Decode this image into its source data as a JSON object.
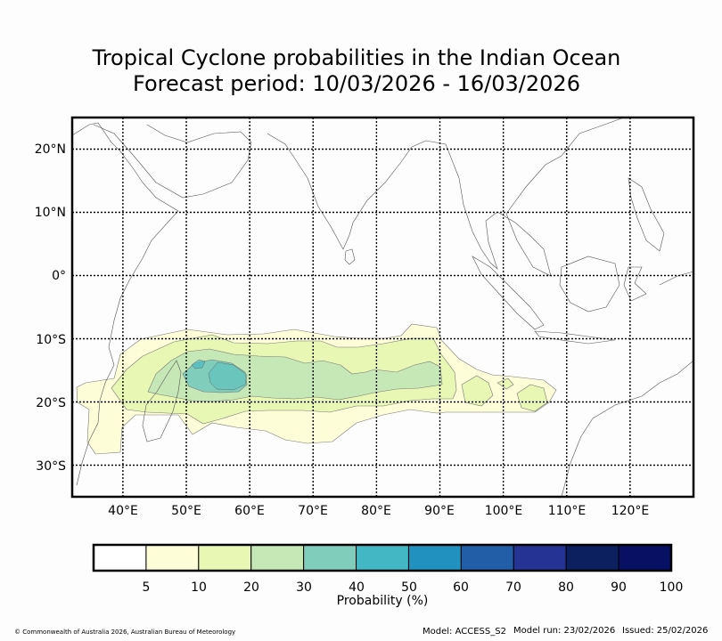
{
  "title_line1": "Tropical Cyclone probabilities in the Indian Ocean",
  "title_line2": "Forecast period: 10/03/2026 - 16/03/2026",
  "map": {
    "lat_labels": [
      "20°N",
      "10°N",
      "0°",
      "10°S",
      "20°S",
      "30°S"
    ],
    "lon_labels": [
      "40°E",
      "50°E",
      "60°E",
      "70°E",
      "80°E",
      "90°E",
      "100°E",
      "110°E",
      "120°E"
    ],
    "lat_range": [
      -35,
      25
    ],
    "lon_range": [
      32,
      130
    ]
  },
  "legend": {
    "label": "Probability (%)",
    "ticks": [
      "5",
      "10",
      "20",
      "30",
      "40",
      "50",
      "60",
      "70",
      "80",
      "90",
      "100"
    ],
    "colors": [
      "#ffffff",
      "#fdfed8",
      "#e9f7b4",
      "#c6e8b6",
      "#80cdbb",
      "#43b7c3",
      "#2192c0",
      "#225ea8",
      "#253494",
      "#0c1f5e",
      "#081063"
    ]
  },
  "footer": {
    "copyright": "© Commonwealth of Australia 2026, Australian Bureau of Meteorology",
    "model": "Model: ACCESS_S2",
    "model_run": "Model run: 23/02/2026",
    "issued": "Issued: 25/02/2026"
  },
  "colors": {
    "coast": "#555555",
    "grid": "#000000",
    "contour": "#777777"
  }
}
